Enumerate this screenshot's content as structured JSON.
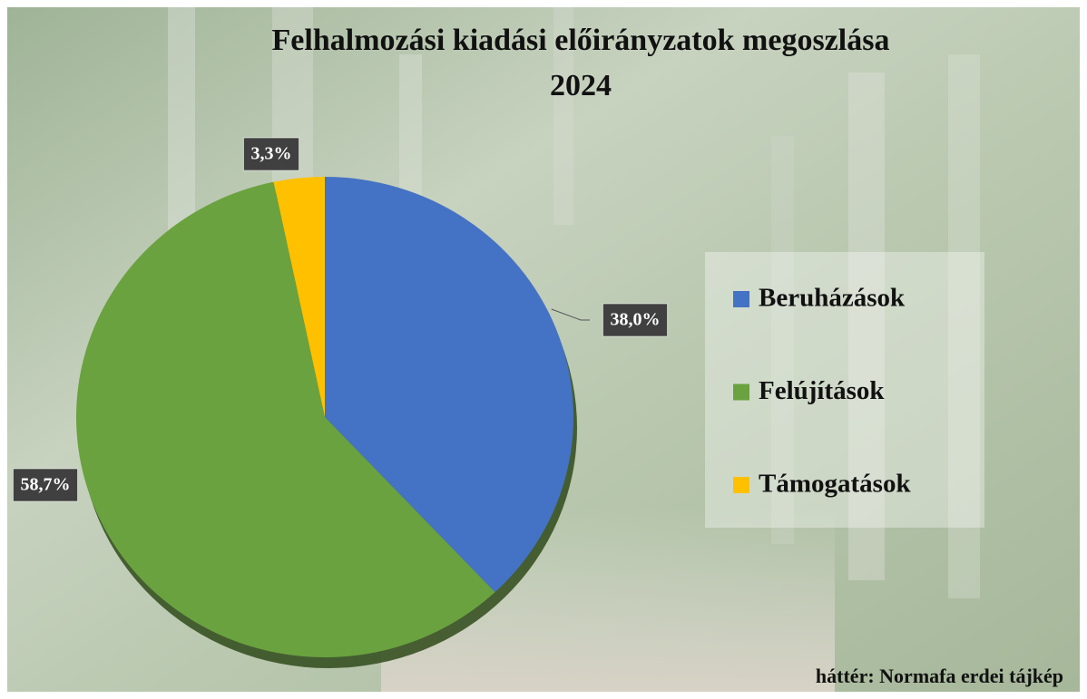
{
  "chart_data": {
    "type": "pie",
    "title": [
      "Felhalmozási kiadási előirányzatok megoszlása",
      "2024"
    ],
    "categories": [
      "Beruházások",
      "Felújítások",
      "Támogatások"
    ],
    "values": [
      38.0,
      58.7,
      3.3
    ],
    "value_labels": [
      "38,0%",
      "58,7%",
      "3,3%"
    ],
    "colors": [
      "#4472c4",
      "#6aa23f",
      "#ffc000"
    ],
    "legend": "right",
    "annotation": "háttér: Normafa erdei tájkép"
  }
}
